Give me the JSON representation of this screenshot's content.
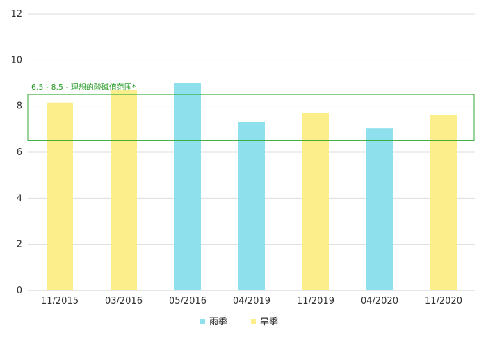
{
  "chart_data": {
    "type": "bar",
    "categories": [
      "11/2015",
      "03/2016",
      "05/2016",
      "04/2019",
      "11/2019",
      "04/2020",
      "11/2020"
    ],
    "values": [
      8.15,
      8.7,
      9.0,
      7.3,
      7.7,
      7.05,
      7.6
    ],
    "season": [
      "dry",
      "dry",
      "rainy",
      "rainy",
      "dry",
      "rainy",
      "dry"
    ],
    "ylim": [
      0,
      12
    ],
    "yticks": [
      0,
      2,
      4,
      6,
      8,
      10,
      12
    ],
    "grid": true,
    "legend_position": "bottom",
    "series": [
      {
        "key": "rainy",
        "name": "雨季",
        "color": "#8ee0ec"
      },
      {
        "key": "dry",
        "name": "旱季",
        "color": "#fdee8c"
      }
    ],
    "reference_band": {
      "min": 6.5,
      "max": 8.5,
      "label": "6.5 - 8.5 - 理想的酸碱值范围*",
      "color": "#33aa33"
    }
  }
}
